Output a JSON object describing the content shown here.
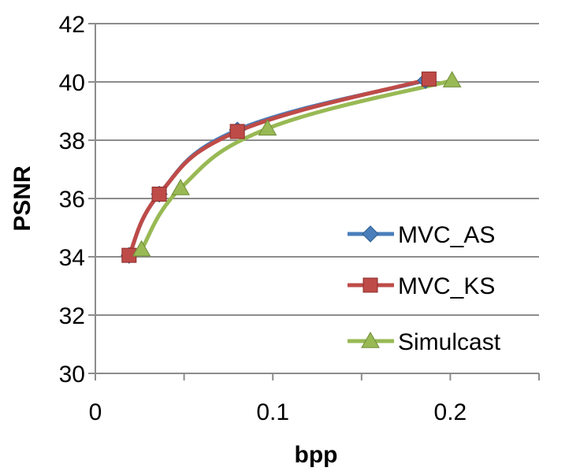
{
  "chart_data": {
    "type": "line",
    "title": "",
    "xlabel": "bpp",
    "ylabel": "PSNR",
    "xlim": [
      0,
      0.25
    ],
    "ylim": [
      30,
      42
    ],
    "xticks": [
      0,
      0.1,
      0.2
    ],
    "xtick_labels": [
      "0",
      "0.1",
      "0.2"
    ],
    "yticks": [
      30,
      32,
      34,
      36,
      38,
      40,
      42
    ],
    "ytick_labels": [
      "30",
      "32",
      "34",
      "36",
      "38",
      "40",
      "42"
    ],
    "grid": "horizontal",
    "legend_position": "right",
    "series": [
      {
        "name": "MVC_AS",
        "marker": "diamond",
        "color": "#4a7ebb",
        "x": [
          0.019,
          0.036,
          0.08,
          0.186
        ],
        "y": [
          34.05,
          36.15,
          38.35,
          40.05
        ]
      },
      {
        "name": "MVC_KS",
        "marker": "square",
        "color": "#be4b48",
        "x": [
          0.019,
          0.036,
          0.08,
          0.188
        ],
        "y": [
          34.05,
          36.15,
          38.3,
          40.1
        ]
      },
      {
        "name": "Simulcast",
        "marker": "triangle",
        "color": "#98b954",
        "x": [
          0.026,
          0.048,
          0.097,
          0.201
        ],
        "y": [
          34.25,
          36.35,
          38.4,
          40.05
        ]
      }
    ]
  }
}
